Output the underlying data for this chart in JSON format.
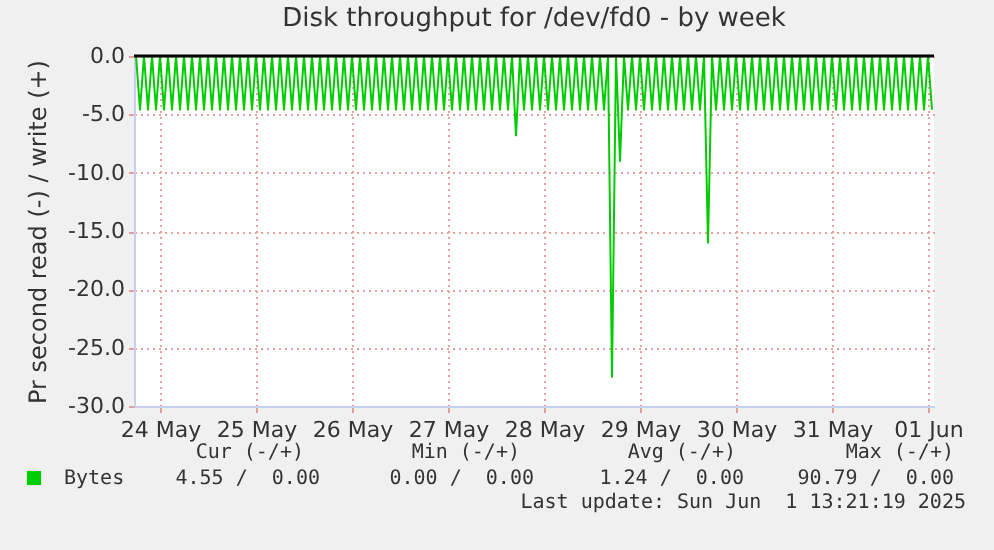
{
  "chart_data": {
    "type": "line",
    "title": "Disk throughput for /dev/fd0 - by week",
    "ylabel": "Pr second read (-) / write (+)",
    "xlim": [
      "2025-05-24T05:30",
      "2025-06-01T13:30"
    ],
    "xticks": [
      {
        "value": "2025-05-24T12:00",
        "label": "24 May"
      },
      {
        "value": "2025-05-25T12:00",
        "label": "25 May"
      },
      {
        "value": "2025-05-26T12:00",
        "label": "26 May"
      },
      {
        "value": "2025-05-27T12:00",
        "label": "27 May"
      },
      {
        "value": "2025-05-28T12:00",
        "label": "28 May"
      },
      {
        "value": "2025-05-29T12:00",
        "label": "29 May"
      },
      {
        "value": "2025-05-30T12:00",
        "label": "30 May"
      },
      {
        "value": "2025-05-31T12:00",
        "label": "31 May"
      },
      {
        "value": "2025-06-01T12:00",
        "label": "01 Jun"
      }
    ],
    "ylim": [
      -30,
      0
    ],
    "yticks": [
      {
        "value": -30,
        "label": "-30.0"
      },
      {
        "value": -25,
        "label": "-25.0"
      },
      {
        "value": -20,
        "label": "-20.0"
      },
      {
        "value": -15,
        "label": "-15.0"
      },
      {
        "value": -10,
        "label": "-10.0"
      },
      {
        "value": -5,
        "label": "-5.0"
      },
      {
        "value": 0,
        "label": "0.0"
      }
    ],
    "grid": true,
    "legend": "bottom left",
    "marker": "none",
    "line_style": "solid",
    "ref_lines": [
      {
        "axis": "y",
        "value": 0,
        "color": "#000000"
      }
    ],
    "annotations": [
      "Cur (-/+)",
      "Min (-/+)",
      "Avg (-/+)",
      "Max (-/+)",
      "4.55 /  0.00",
      "0.00 /  0.00",
      "1.24 /  0.00",
      "90.79 /  0.00",
      "Last update: Sun Jun  1 13:21:19 2025"
    ],
    "series": [
      {
        "name": "Bytes",
        "color": "#00cc00",
        "x": [
          "2025-05-24T06:00",
          "2025-05-24T07:00",
          "2025-05-24T08:00",
          "2025-05-24T09:00",
          "2025-05-24T10:00",
          "2025-05-24T11:00",
          "2025-05-24T12:00",
          "2025-05-24T13:00",
          "2025-05-24T14:00",
          "2025-05-24T15:00",
          "2025-05-24T16:00",
          "2025-05-24T17:00",
          "2025-05-24T18:00",
          "2025-05-24T19:00",
          "2025-05-24T20:00",
          "2025-05-24T21:00",
          "2025-05-24T22:00",
          "2025-05-24T23:00",
          "2025-05-25T00:00",
          "2025-05-25T01:00",
          "2025-05-25T02:00",
          "2025-05-25T03:00",
          "2025-05-25T04:00",
          "2025-05-25T05:00",
          "2025-05-25T06:00",
          "2025-05-25T07:00",
          "2025-05-25T08:00",
          "2025-05-25T09:00",
          "2025-05-25T10:00",
          "2025-05-25T11:00",
          "2025-05-25T12:00",
          "2025-05-25T13:00",
          "2025-05-25T14:00",
          "2025-05-25T15:00",
          "2025-05-25T16:00",
          "2025-05-25T17:00",
          "2025-05-25T18:00",
          "2025-05-25T19:00",
          "2025-05-25T20:00",
          "2025-05-25T21:00",
          "2025-05-25T22:00",
          "2025-05-25T23:00",
          "2025-05-26T00:00",
          "2025-05-26T01:00",
          "2025-05-26T02:00",
          "2025-05-26T03:00",
          "2025-05-26T04:00",
          "2025-05-26T05:00",
          "2025-05-26T06:00",
          "2025-05-26T07:00",
          "2025-05-26T08:00",
          "2025-05-26T09:00",
          "2025-05-26T10:00",
          "2025-05-26T11:00",
          "2025-05-26T12:00",
          "2025-05-26T13:00",
          "2025-05-26T14:00",
          "2025-05-26T15:00",
          "2025-05-26T16:00",
          "2025-05-26T17:00",
          "2025-05-26T18:00",
          "2025-05-26T19:00",
          "2025-05-26T20:00",
          "2025-05-26T21:00",
          "2025-05-26T22:00",
          "2025-05-26T23:00",
          "2025-05-27T00:00",
          "2025-05-27T01:00",
          "2025-05-27T02:00",
          "2025-05-27T03:00",
          "2025-05-27T04:00",
          "2025-05-27T05:00",
          "2025-05-27T06:00",
          "2025-05-27T07:00",
          "2025-05-27T08:00",
          "2025-05-27T09:00",
          "2025-05-27T10:00",
          "2025-05-27T11:00",
          "2025-05-27T12:00",
          "2025-05-27T13:00",
          "2025-05-27T14:00",
          "2025-05-27T15:00",
          "2025-05-27T16:00",
          "2025-05-27T17:00",
          "2025-05-27T18:00",
          "2025-05-27T19:00",
          "2025-05-27T20:00",
          "2025-05-27T21:00",
          "2025-05-27T22:00",
          "2025-05-27T23:00",
          "2025-05-28T00:00",
          "2025-05-28T01:00",
          "2025-05-28T02:00",
          "2025-05-28T03:00",
          "2025-05-28T04:00",
          "2025-05-28T05:00",
          "2025-05-28T06:00",
          "2025-05-28T07:00",
          "2025-05-28T08:00",
          "2025-05-28T09:00",
          "2025-05-28T10:00",
          "2025-05-28T11:00",
          "2025-05-28T12:00",
          "2025-05-28T13:00",
          "2025-05-28T14:00",
          "2025-05-28T15:00",
          "2025-05-28T16:00",
          "2025-05-28T17:00",
          "2025-05-28T18:00",
          "2025-05-28T19:00",
          "2025-05-28T20:00",
          "2025-05-28T21:00",
          "2025-05-28T22:00",
          "2025-05-28T23:00",
          "2025-05-29T00:00",
          "2025-05-29T01:00",
          "2025-05-29T02:00",
          "2025-05-29T03:00",
          "2025-05-29T04:00",
          "2025-05-29T05:00",
          "2025-05-29T06:00",
          "2025-05-29T07:00",
          "2025-05-29T08:00",
          "2025-05-29T09:00",
          "2025-05-29T10:00",
          "2025-05-29T11:00",
          "2025-05-29T12:00",
          "2025-05-29T13:00",
          "2025-05-29T14:00",
          "2025-05-29T15:00",
          "2025-05-29T16:00",
          "2025-05-29T17:00",
          "2025-05-29T18:00",
          "2025-05-29T19:00",
          "2025-05-29T20:00",
          "2025-05-29T21:00",
          "2025-05-29T22:00",
          "2025-05-29T23:00",
          "2025-05-30T00:00",
          "2025-05-30T01:00",
          "2025-05-30T02:00",
          "2025-05-30T03:00",
          "2025-05-30T04:00",
          "2025-05-30T05:00",
          "2025-05-30T06:00",
          "2025-05-30T07:00",
          "2025-05-30T08:00",
          "2025-05-30T09:00",
          "2025-05-30T10:00",
          "2025-05-30T11:00",
          "2025-05-30T12:00",
          "2025-05-30T13:00",
          "2025-05-30T14:00",
          "2025-05-30T15:00",
          "2025-05-30T16:00",
          "2025-05-30T17:00",
          "2025-05-30T18:00",
          "2025-05-30T19:00",
          "2025-05-30T20:00",
          "2025-05-30T21:00",
          "2025-05-30T22:00",
          "2025-05-30T23:00",
          "2025-05-31T00:00",
          "2025-05-31T01:00",
          "2025-05-31T02:00",
          "2025-05-31T03:00",
          "2025-05-31T04:00",
          "2025-05-31T05:00",
          "2025-05-31T06:00",
          "2025-05-31T07:00",
          "2025-05-31T08:00",
          "2025-05-31T09:00",
          "2025-05-31T10:00",
          "2025-05-31T11:00",
          "2025-05-31T12:00",
          "2025-05-31T13:00",
          "2025-05-31T14:00",
          "2025-05-31T15:00",
          "2025-05-31T16:00",
          "2025-05-31T17:00",
          "2025-05-31T18:00",
          "2025-05-31T19:00",
          "2025-05-31T20:00",
          "2025-05-31T21:00",
          "2025-05-31T22:00",
          "2025-05-31T23:00",
          "2025-06-01T00:00",
          "2025-06-01T01:00",
          "2025-06-01T02:00",
          "2025-06-01T03:00",
          "2025-06-01T04:00",
          "2025-06-01T05:00",
          "2025-06-01T06:00",
          "2025-06-01T07:00",
          "2025-06-01T08:00",
          "2025-06-01T09:00",
          "2025-06-01T10:00",
          "2025-06-01T11:00",
          "2025-06-01T12:00",
          "2025-06-01T13:00"
        ],
        "values": [
          0,
          -4.6,
          0,
          -4.6,
          0,
          -4.6,
          0,
          -4.6,
          0,
          -4.6,
          0,
          -4.6,
          0,
          -4.6,
          0,
          -4.6,
          0,
          -4.6,
          0,
          -4.6,
          0,
          -4.6,
          0,
          -4.6,
          0,
          -4.6,
          0,
          -4.6,
          0,
          -4.6,
          0,
          -4.6,
          0,
          -4.6,
          0,
          -4.6,
          0,
          -4.6,
          0,
          -4.6,
          0,
          -4.6,
          0,
          -4.6,
          0,
          -4.6,
          0,
          -4.6,
          0,
          -4.6,
          0,
          -4.6,
          0,
          -4.6,
          0,
          -4.6,
          0,
          -4.6,
          0,
          -4.6,
          0,
          -4.6,
          0,
          -4.6,
          0,
          -4.6,
          0,
          -4.6,
          0,
          -4.6,
          0,
          -4.6,
          0,
          -4.6,
          0,
          -4.6,
          0,
          -4.6,
          0,
          -4.6,
          0,
          -4.6,
          0,
          -4.6,
          0,
          -4.6,
          0,
          -4.6,
          0,
          -4.6,
          0,
          -4.6,
          0,
          -4.6,
          0,
          -6.8,
          0,
          -4.6,
          0,
          -4.6,
          0,
          -4.6,
          0,
          -4.6,
          0,
          -4.6,
          0,
          -4.6,
          0,
          -4.6,
          0,
          -4.6,
          0,
          -4.6,
          0,
          -4.6,
          0,
          -4.6,
          0,
          -27.5,
          0,
          -9.0,
          0,
          -4.6,
          0,
          -4.6,
          0,
          -4.6,
          0,
          -4.6,
          0,
          -4.6,
          0,
          -4.6,
          0,
          -4.6,
          0,
          -4.6,
          0,
          -4.6,
          0,
          -4.6,
          0,
          -16.0,
          0,
          -4.6,
          0,
          -4.6,
          0,
          -4.6,
          0,
          -4.6,
          0,
          -4.6,
          0,
          -4.6,
          0,
          -4.6,
          0,
          -4.6,
          0,
          -4.6,
          0,
          -4.6,
          0,
          -4.6,
          0,
          -4.6,
          0,
          -4.6,
          0,
          -4.6,
          0,
          -4.6,
          0,
          -4.6,
          0,
          -4.6,
          0,
          -4.6,
          0,
          -4.6,
          0,
          -4.6,
          0,
          -4.6,
          0,
          -4.6,
          0,
          -4.6,
          0,
          -4.6,
          0,
          -4.6,
          0,
          -4.6,
          0,
          -4.6,
          0,
          -4.6
        ]
      }
    ]
  }
}
